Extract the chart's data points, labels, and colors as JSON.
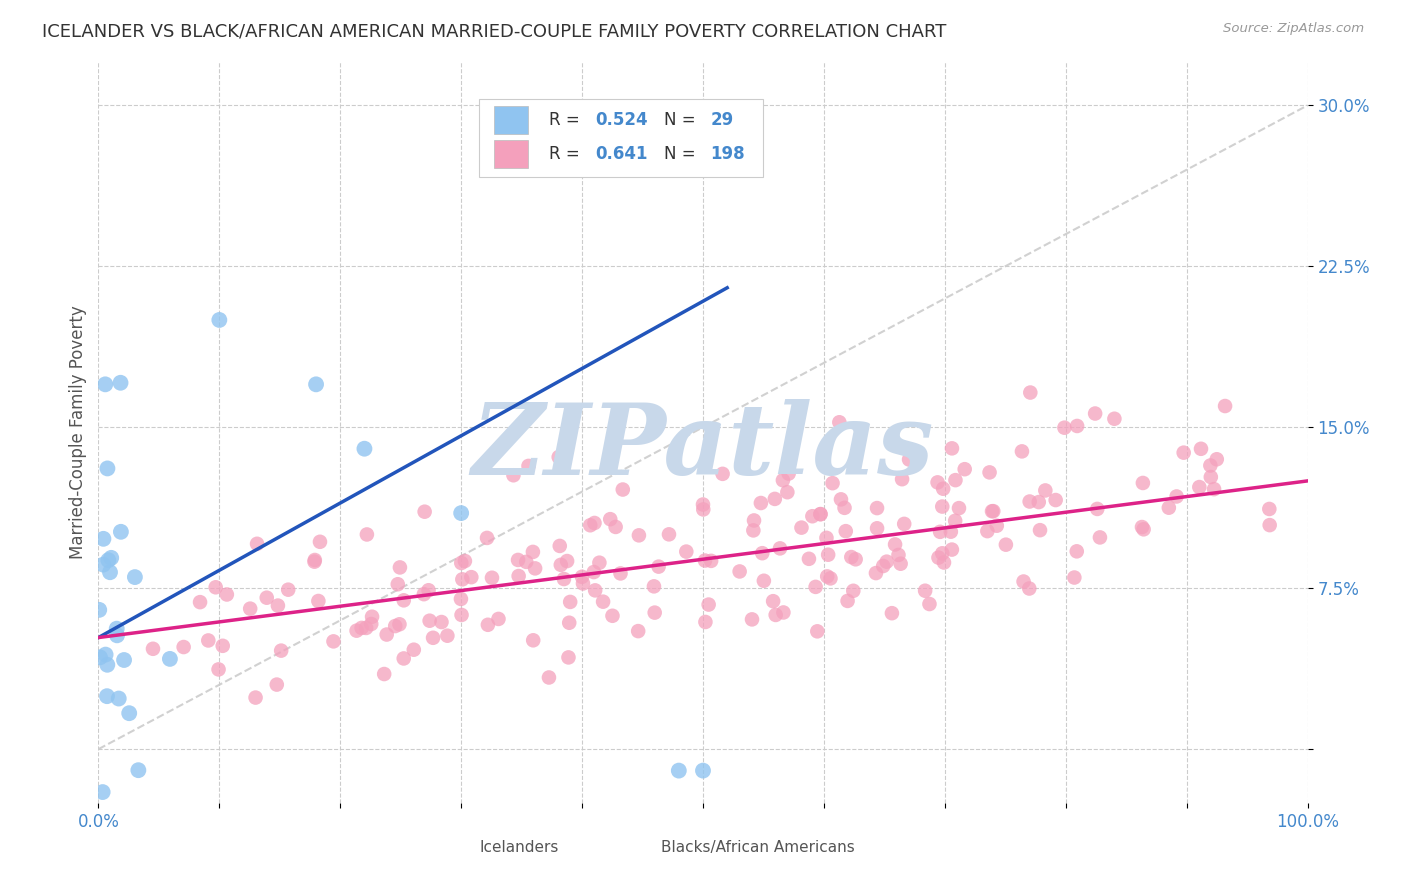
{
  "title": "ICELANDER VS BLACK/AFRICAN AMERICAN MARRIED-COUPLE FAMILY POVERTY CORRELATION CHART",
  "source": "Source: ZipAtlas.com",
  "ylabel": "Married-Couple Family Poverty",
  "xlim": [
    0,
    1
  ],
  "ylim": [
    -0.025,
    0.32
  ],
  "yticks": [
    0.0,
    0.075,
    0.15,
    0.225,
    0.3
  ],
  "ytick_labels": [
    "",
    "7.5%",
    "15.0%",
    "22.5%",
    "30.0%"
  ],
  "icelander_color": "#90C4F0",
  "black_color": "#F4A0BC",
  "icelander_line_color": "#2255BB",
  "black_line_color": "#DD2288",
  "diagonal_color": "#CCCCCC",
  "watermark_text": "ZIPatlas",
  "watermark_color": "#C8D8EA",
  "background_color": "#FFFFFF",
  "grid_color": "#CCCCCC",
  "title_color": "#333333",
  "axis_label_color": "#555555",
  "tick_color": "#4488CC",
  "N_icelander": 29,
  "N_black": 198,
  "ice_line_x0": 0.0,
  "ice_line_x1": 0.52,
  "ice_line_y0": 0.052,
  "ice_line_y1": 0.215,
  "black_line_x0": 0.0,
  "black_line_x1": 1.0,
  "black_line_y0": 0.052,
  "black_line_y1": 0.125
}
